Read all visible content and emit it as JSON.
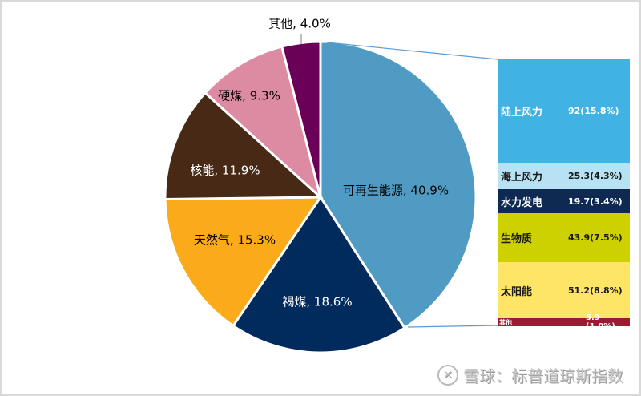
{
  "chart_data": [
    {
      "type": "pie",
      "title": "",
      "start_angle": "12 o'clock, clockwise",
      "categories": [
        "可再生能源",
        "褐煤",
        "天然气",
        "核能",
        "硬煤",
        "其他"
      ],
      "values": [
        40.9,
        18.6,
        15.3,
        11.9,
        9.3,
        4.0
      ],
      "unit": "%",
      "colors": [
        "#4f9bc4",
        "#002b5c",
        "#fbaa19",
        "#472916",
        "#dd8aa3",
        "#6b0059"
      ],
      "labels": [
        "可再生能源, 40.9%",
        "褐煤, 18.6%",
        "天然气, 15.3%",
        "核能, 11.9%",
        "硬煤, 9.3%",
        "其他, 4.0%"
      ]
    },
    {
      "type": "bar",
      "stacked": true,
      "orientation": "vertical stacked breakdown of 可再生能源",
      "categories": [
        "陆上风力",
        "海上风力",
        "水力发电",
        "生物质",
        "太阳能",
        "其他"
      ],
      "values": [
        92,
        25.3,
        19.7,
        43.9,
        51.2,
        5.9
      ],
      "shares_pct": [
        15.8,
        4.3,
        3.4,
        7.5,
        8.8,
        1.0
      ],
      "colors": [
        "#40b2e3",
        "#b7e2f4",
        "#0f2a52",
        "#cdd100",
        "#ffe566",
        "#9c1a32"
      ],
      "labels": [
        "92(15.8%)",
        "25.3(4.3%)",
        "19.7(3.4%)",
        "43.9(7.5%)",
        "51.2(8.8%)",
        "5.9 (1.0%)"
      ]
    }
  ],
  "pie": {
    "slices": [
      {
        "name": "可再生能源",
        "label": "可再生能源, 40.9%",
        "value": 40.9,
        "color": "#4f9bc4",
        "text_color": "#1a1a1a"
      },
      {
        "name": "褐煤",
        "label": "褐煤, 18.6%",
        "value": 18.6,
        "color": "#002b5c",
        "text_color": "#ffffff"
      },
      {
        "name": "天然气",
        "label": "天然气, 15.3%",
        "value": 15.3,
        "color": "#fbaa19",
        "text_color": "#1a1a1a"
      },
      {
        "name": "核能",
        "label": "核能, 11.9%",
        "value": 11.9,
        "color": "#472916",
        "text_color": "#ffffff"
      },
      {
        "name": "硬煤",
        "label": "硬煤, 9.3%",
        "value": 9.3,
        "color": "#dd8aa3",
        "text_color": "#1a1a1a"
      },
      {
        "name": "其他",
        "label": "其他, 4.0%",
        "value": 4.0,
        "color": "#6b0059",
        "text_color": "#1a1a1a"
      }
    ]
  },
  "breakdown": {
    "items": [
      {
        "name": "陆上风力",
        "value": "92(15.8%)",
        "color": "#40b2e3",
        "text_color": "#ffffff"
      },
      {
        "name": "海上风力",
        "value": "25.3(4.3%)",
        "color": "#b7e2f4",
        "text_color": "#1a1a1a"
      },
      {
        "name": "水力发电",
        "value": "19.7(3.4%)",
        "color": "#0f2a52",
        "text_color": "#ffffff"
      },
      {
        "name": "生物质",
        "value": "43.9(7.5%)",
        "color": "#cdd100",
        "text_color": "#1a1a1a"
      },
      {
        "name": "太阳能",
        "value": "51.2(8.8%)",
        "color": "#ffe566",
        "text_color": "#1a1a1a"
      },
      {
        "name": "其他",
        "value": "5.9 (1.0%)",
        "color": "#9c1a32",
        "text_color": "#ffffff"
      }
    ]
  },
  "watermark": {
    "logo": "雪球-logo",
    "text": "雪球：标普道琼斯指数"
  }
}
